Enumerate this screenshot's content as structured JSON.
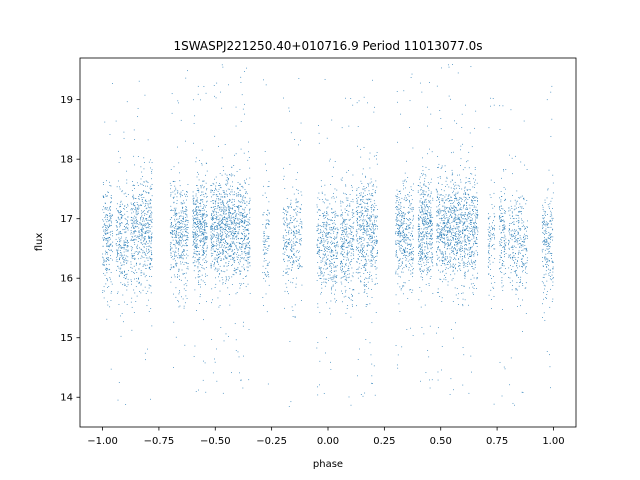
{
  "chart_data": {
    "type": "scatter",
    "title": "1SWASPJ221250.40+010716.9 Period 11013077.0s",
    "xlabel": "phase",
    "ylabel": "flux",
    "xlim": [
      -1.1,
      1.1
    ],
    "ylim": [
      13.5,
      19.7
    ],
    "xticks": [
      -1.0,
      -0.75,
      -0.5,
      -0.25,
      0.0,
      0.25,
      0.5,
      0.75,
      1.0
    ],
    "xtick_labels": [
      "−1.00",
      "−0.75",
      "−0.50",
      "−0.25",
      "0.00",
      "0.25",
      "0.50",
      "0.75",
      "1.00"
    ],
    "yticks": [
      14,
      15,
      16,
      17,
      18,
      19
    ],
    "ytick_labels": [
      "14",
      "15",
      "16",
      "17",
      "18",
      "19"
    ],
    "grid": false,
    "legend": false,
    "marker_color": "#1f77b4",
    "series": [
      {
        "observation_clusters": [
          {
            "phase_range": [
              -1.0,
              -0.955
            ],
            "flux_center": 16.7,
            "flux_spread": 0.45,
            "density": 220
          },
          {
            "phase_range": [
              -0.94,
              -0.885
            ],
            "flux_center": 16.55,
            "flux_spread": 0.45,
            "density": 260
          },
          {
            "phase_range": [
              -0.875,
              -0.78
            ],
            "flux_center": 16.75,
            "flux_spread": 0.5,
            "density": 520
          },
          {
            "phase_range": [
              -0.7,
              -0.62
            ],
            "flux_center": 16.7,
            "flux_spread": 0.45,
            "density": 420
          },
          {
            "phase_range": [
              -0.6,
              -0.535
            ],
            "flux_center": 16.8,
            "flux_spread": 0.45,
            "density": 460
          },
          {
            "phase_range": [
              -0.52,
              -0.345
            ],
            "flux_center": 16.8,
            "flux_spread": 0.45,
            "density": 1100
          },
          {
            "phase_range": [
              -0.29,
              -0.26
            ],
            "flux_center": 16.6,
            "flux_spread": 0.4,
            "density": 100
          },
          {
            "phase_range": [
              -0.2,
              -0.115
            ],
            "flux_center": 16.6,
            "flux_spread": 0.45,
            "density": 300
          },
          {
            "phase_range": [
              -0.05,
              0.045
            ],
            "flux_center": 16.55,
            "flux_spread": 0.45,
            "density": 420
          },
          {
            "phase_range": [
              0.055,
              0.115
            ],
            "flux_center": 16.6,
            "flux_spread": 0.45,
            "density": 300
          },
          {
            "phase_range": [
              0.125,
              0.22
            ],
            "flux_center": 16.75,
            "flux_spread": 0.5,
            "density": 520
          },
          {
            "phase_range": [
              0.3,
              0.38
            ],
            "flux_center": 16.7,
            "flux_spread": 0.45,
            "density": 420
          },
          {
            "phase_range": [
              0.4,
              0.465
            ],
            "flux_center": 16.8,
            "flux_spread": 0.45,
            "density": 460
          },
          {
            "phase_range": [
              0.48,
              0.665
            ],
            "flux_center": 16.8,
            "flux_spread": 0.45,
            "density": 1100
          },
          {
            "phase_range": [
              0.71,
              0.74
            ],
            "flux_center": 16.6,
            "flux_spread": 0.4,
            "density": 100
          },
          {
            "phase_range": [
              0.76,
              0.79
            ],
            "flux_center": 16.7,
            "flux_spread": 0.45,
            "density": 140
          },
          {
            "phase_range": [
              0.8,
              0.885
            ],
            "flux_center": 16.6,
            "flux_spread": 0.45,
            "density": 300
          },
          {
            "phase_range": [
              0.95,
              1.0
            ],
            "flux_center": 16.55,
            "flux_spread": 0.45,
            "density": 220
          }
        ]
      }
    ]
  }
}
